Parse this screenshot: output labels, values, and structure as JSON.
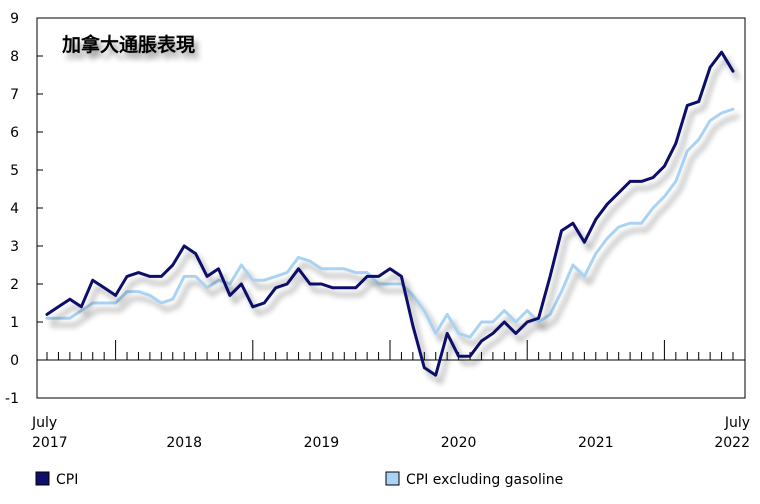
{
  "chart_data": {
    "type": "line",
    "title": "加拿大通脹表現",
    "xlabel": "",
    "ylabel": "",
    "ylim": [
      -1,
      9
    ],
    "yticks": [
      -1,
      0,
      1,
      2,
      3,
      4,
      5,
      6,
      7,
      8,
      9
    ],
    "x_start": "2017-07",
    "x_end": "2022-07",
    "x_tick_labels": [
      {
        "date": "2017-07",
        "lines": [
          "July",
          "2017"
        ]
      },
      {
        "date": "2018-07",
        "lines": [
          "",
          "2018"
        ]
      },
      {
        "date": "2019-07",
        "lines": [
          "",
          "2019"
        ]
      },
      {
        "date": "2020-07",
        "lines": [
          "",
          "2020"
        ]
      },
      {
        "date": "2021-07",
        "lines": [
          "",
          "2021"
        ]
      },
      {
        "date": "2022-07",
        "lines": [
          "July",
          "2022"
        ]
      }
    ],
    "x": [
      "2017-07",
      "2017-08",
      "2017-09",
      "2017-10",
      "2017-11",
      "2017-12",
      "2018-01",
      "2018-02",
      "2018-03",
      "2018-04",
      "2018-05",
      "2018-06",
      "2018-07",
      "2018-08",
      "2018-09",
      "2018-10",
      "2018-11",
      "2018-12",
      "2019-01",
      "2019-02",
      "2019-03",
      "2019-04",
      "2019-05",
      "2019-06",
      "2019-07",
      "2019-08",
      "2019-09",
      "2019-10",
      "2019-11",
      "2019-12",
      "2020-01",
      "2020-02",
      "2020-03",
      "2020-04",
      "2020-05",
      "2020-06",
      "2020-07",
      "2020-08",
      "2020-09",
      "2020-10",
      "2020-11",
      "2020-12",
      "2021-01",
      "2021-02",
      "2021-03",
      "2021-04",
      "2021-05",
      "2021-06",
      "2021-07",
      "2021-08",
      "2021-09",
      "2021-10",
      "2021-11",
      "2021-12",
      "2022-01",
      "2022-02",
      "2022-03",
      "2022-04",
      "2022-05",
      "2022-06",
      "2022-07"
    ],
    "series": [
      {
        "name": "CPI",
        "color": "#10106b",
        "values": [
          1.2,
          1.4,
          1.6,
          1.4,
          2.1,
          1.9,
          1.7,
          2.2,
          2.3,
          2.2,
          2.2,
          2.5,
          3.0,
          2.8,
          2.2,
          2.4,
          1.7,
          2.0,
          1.4,
          1.5,
          1.9,
          2.0,
          2.4,
          2.0,
          2.0,
          1.9,
          1.9,
          1.9,
          2.2,
          2.2,
          2.4,
          2.2,
          0.9,
          -0.2,
          -0.4,
          0.7,
          0.1,
          0.1,
          0.5,
          0.7,
          1.0,
          0.7,
          1.0,
          1.1,
          2.2,
          3.4,
          3.6,
          3.1,
          3.7,
          4.1,
          4.4,
          4.7,
          4.7,
          4.8,
          5.1,
          5.7,
          6.7,
          6.8,
          7.7,
          8.1,
          7.6
        ]
      },
      {
        "name": "CPI excluding gasoline",
        "color": "#a9d2f3",
        "values": [
          1.1,
          1.1,
          1.1,
          1.3,
          1.5,
          1.5,
          1.5,
          1.8,
          1.8,
          1.7,
          1.5,
          1.6,
          2.2,
          2.2,
          1.9,
          2.1,
          2.0,
          2.5,
          2.1,
          2.1,
          2.2,
          2.3,
          2.7,
          2.6,
          2.4,
          2.4,
          2.4,
          2.3,
          2.3,
          2.0,
          2.0,
          2.0,
          1.7,
          1.3,
          0.7,
          1.2,
          0.7,
          0.6,
          1.0,
          1.0,
          1.3,
          1.0,
          1.3,
          1.0,
          1.2,
          1.8,
          2.5,
          2.2,
          2.8,
          3.2,
          3.5,
          3.6,
          3.6,
          4.0,
          4.3,
          4.7,
          5.5,
          5.8,
          6.3,
          6.5,
          6.6
        ]
      }
    ],
    "grid": false,
    "legend_position": "bottom"
  }
}
